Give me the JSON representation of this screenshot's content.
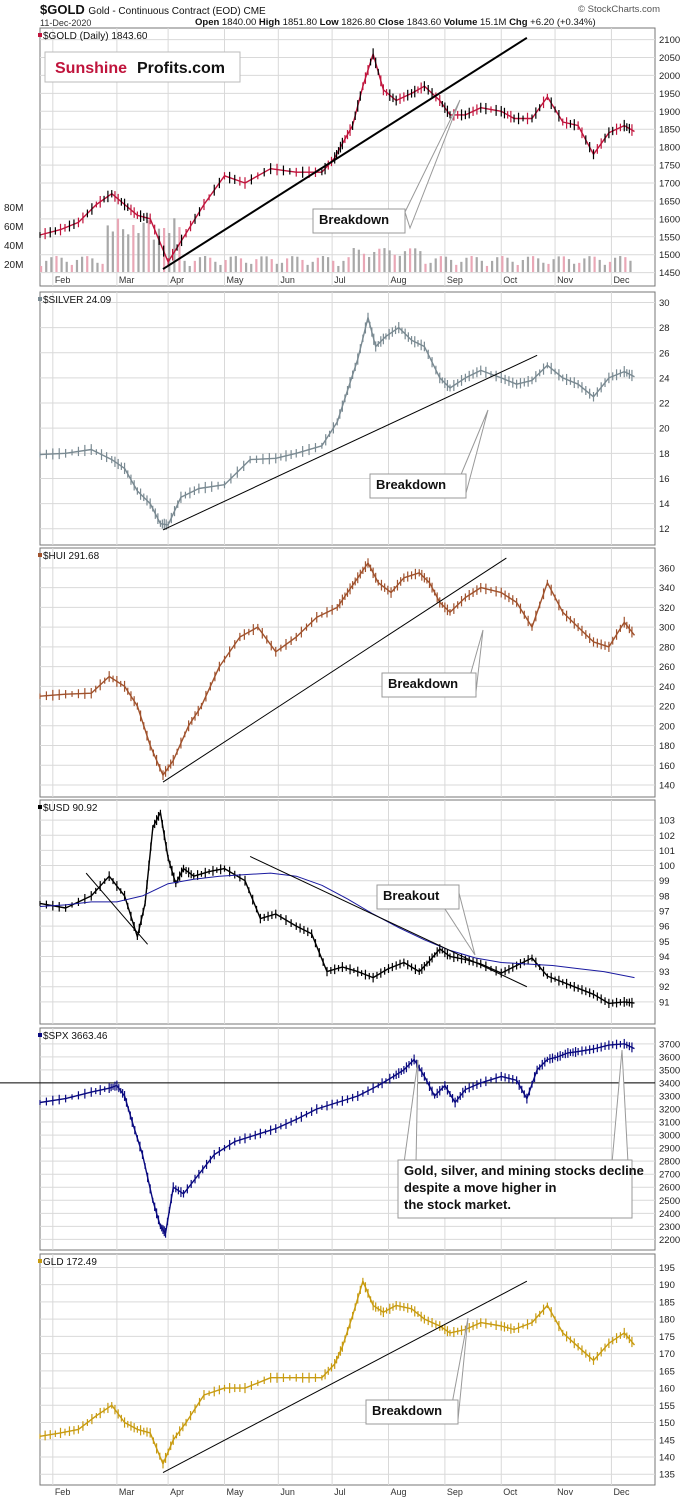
{
  "header": {
    "symbol": "$GOLD",
    "description": "Gold - Continuous Contract (EOD)",
    "exchange": "CME",
    "date": "11-Dec-2020",
    "ohlc": [
      {
        "label": "Open",
        "value": "1840.00"
      },
      {
        "label": "High",
        "value": "1851.80"
      },
      {
        "label": "Low",
        "value": "1826.80"
      },
      {
        "label": "Close",
        "value": "1843.60"
      },
      {
        "label": "Volume",
        "value": "15.1M"
      },
      {
        "label": "Chg",
        "value": "+6.20 (+0.34%)"
      }
    ],
    "credit": "© StockCharts.com",
    "logo_word1": "Sunshine",
    "logo_word2": "Profits.com"
  },
  "colors": {
    "gold_up": "#000000",
    "gold_down": "#c0143c",
    "silver": "#7a8a92",
    "hui": "#a0522d",
    "usd": "#000000",
    "usd_ma": "#1a1aa0",
    "spx": "#0a0a80",
    "gld": "#c89b10",
    "logo_red": "#c0143c",
    "grid": "#d9d9d9"
  },
  "x_axis": {
    "months": [
      "Feb",
      "Mar",
      "Apr",
      "May",
      "Jun",
      "Jul",
      "Aug",
      "Sep",
      "Oct",
      "Nov",
      "Dec"
    ]
  },
  "chart_data": [
    {
      "type": "line",
      "panel": "gold",
      "legend": "$GOLD (Daily) 1843.60",
      "ylim": [
        1435,
        2110
      ],
      "yticks": [
        1450,
        1500,
        1550,
        1600,
        1650,
        1700,
        1750,
        1800,
        1850,
        1900,
        1950,
        2000,
        2050,
        2100
      ],
      "volume_ticks": [
        "20M",
        "40M",
        "60M",
        "80M"
      ],
      "series": [
        {
          "x": [
            0,
            8,
            15,
            22,
            28,
            33,
            38,
            43,
            50,
            57,
            64,
            72,
            80,
            90,
            100,
            110,
            115,
            118,
            122,
            126,
            130,
            134,
            139,
            145,
            150,
            156,
            160,
            166,
            172,
            180,
            185,
            192,
            198,
            204,
            210,
            216,
            222,
            228,
            232
          ],
          "y": [
            1555,
            1570,
            1590,
            1640,
            1670,
            1640,
            1610,
            1600,
            1480,
            1560,
            1640,
            1720,
            1700,
            1740,
            1730,
            1730,
            1770,
            1810,
            1860,
            1970,
            2060,
            1960,
            1930,
            1950,
            1970,
            1930,
            1890,
            1890,
            1910,
            1900,
            1880,
            1880,
            1940,
            1870,
            1860,
            1780,
            1840,
            1860,
            1843.6
          ]
        }
      ],
      "trendline": {
        "x": [
          48,
          190
        ],
        "y": [
          1460,
          2105
        ]
      },
      "annotation": "Breakdown"
    },
    {
      "type": "line",
      "panel": "silver",
      "legend": "$SILVER 24.09",
      "ylim": [
        11.5,
        30.2
      ],
      "yticks": [
        12,
        14,
        16,
        18,
        20,
        22,
        24,
        26,
        28,
        30
      ],
      "series": [
        {
          "x": [
            0,
            10,
            20,
            28,
            33,
            38,
            43,
            47,
            50,
            55,
            62,
            72,
            82,
            92,
            100,
            110,
            116,
            120,
            124,
            128,
            131,
            135,
            140,
            145,
            150,
            156,
            160,
            166,
            172,
            180,
            186,
            192,
            198,
            204,
            210,
            216,
            222,
            228,
            232
          ],
          "y": [
            17.9,
            18.0,
            18.3,
            17.5,
            16.8,
            15.0,
            14.0,
            12.4,
            12.3,
            14.5,
            15.2,
            15.5,
            17.5,
            17.6,
            18.0,
            18.6,
            20.5,
            23.0,
            25.5,
            28.8,
            26.5,
            27.3,
            28.0,
            27.0,
            26.5,
            24.0,
            23.2,
            24.0,
            24.6,
            24.0,
            23.5,
            23.8,
            25.0,
            24.0,
            23.5,
            22.5,
            24.0,
            24.5,
            24.09
          ]
        }
      ],
      "trendline": {
        "x": [
          48,
          194
        ],
        "y": [
          11.9,
          25.8
        ]
      },
      "annotation": "Breakdown"
    },
    {
      "type": "line",
      "panel": "hui",
      "legend": "$HUI 291.68",
      "ylim": [
        138,
        368
      ],
      "yticks": [
        140,
        160,
        180,
        200,
        220,
        240,
        260,
        280,
        300,
        320,
        340,
        360
      ],
      "series": [
        {
          "x": [
            0,
            10,
            20,
            27,
            33,
            38,
            43,
            48,
            52,
            58,
            63,
            70,
            78,
            85,
            92,
            100,
            108,
            116,
            120,
            124,
            128,
            132,
            137,
            142,
            148,
            152,
            156,
            160,
            166,
            172,
            180,
            186,
            192,
            198,
            204,
            210,
            216,
            222,
            228,
            232
          ],
          "y": [
            230,
            232,
            233,
            250,
            240,
            220,
            180,
            150,
            165,
            200,
            220,
            260,
            290,
            300,
            275,
            290,
            310,
            320,
            335,
            350,
            365,
            345,
            335,
            350,
            355,
            345,
            325,
            315,
            330,
            340,
            335,
            325,
            300,
            345,
            315,
            300,
            285,
            280,
            305,
            291.68
          ]
        }
      ],
      "trendline": {
        "x": [
          48,
          182
        ],
        "y": [
          143,
          370
        ]
      },
      "annotation": "Breakdown"
    },
    {
      "type": "line",
      "panel": "usd",
      "legend": "$USD 90.92",
      "ylim": [
        90.2,
        103.8
      ],
      "yticks": [
        91,
        92,
        93,
        94,
        95,
        96,
        97,
        98,
        99,
        100,
        101,
        102,
        103
      ],
      "series": [
        {
          "name": "$USD",
          "x": [
            0,
            10,
            20,
            27,
            33,
            38,
            41,
            44,
            47,
            50,
            53,
            56,
            60,
            66,
            72,
            80,
            86,
            92,
            100,
            106,
            112,
            118,
            124,
            130,
            136,
            142,
            148,
            152,
            156,
            160,
            166,
            172,
            180,
            186,
            192,
            198,
            204,
            210,
            216,
            222,
            228,
            232
          ],
          "y": [
            97.5,
            97.2,
            98.0,
            99.3,
            98.0,
            95.3,
            97.5,
            102.5,
            103.5,
            100.5,
            98.8,
            99.8,
            99.3,
            99.6,
            99.8,
            99.0,
            96.5,
            96.8,
            96.0,
            95.5,
            93.0,
            93.3,
            93.0,
            92.6,
            93.2,
            93.6,
            93.0,
            93.7,
            94.5,
            94.0,
            93.8,
            93.5,
            92.9,
            93.4,
            93.9,
            92.7,
            92.3,
            91.9,
            91.5,
            90.9,
            91.0,
            90.92
          ]
        },
        {
          "name": "MA",
          "x": [
            0,
            10,
            20,
            30,
            40,
            50,
            60,
            70,
            80,
            90,
            100,
            110,
            120,
            130,
            140,
            150,
            160,
            170,
            180,
            190,
            200,
            210,
            220,
            232
          ],
          "y": [
            97.3,
            97.4,
            97.6,
            97.6,
            98.0,
            98.8,
            99.1,
            99.3,
            99.4,
            99.5,
            99.3,
            98.7,
            97.8,
            96.8,
            95.9,
            95.1,
            94.4,
            93.9,
            93.6,
            93.5,
            93.4,
            93.2,
            93.0,
            92.6
          ]
        }
      ],
      "trendlines": [
        {
          "x": [
            18,
            42
          ],
          "y": [
            99.5,
            94.8
          ]
        },
        {
          "x": [
            82,
            190
          ],
          "y": [
            100.6,
            92.0
          ]
        }
      ],
      "annotation": "Breakout"
    },
    {
      "type": "line",
      "panel": "spx",
      "legend": "$SPX 3663.46",
      "ylim": [
        2180,
        3760
      ],
      "yticks": [
        2200,
        2300,
        2400,
        2500,
        2600,
        2700,
        2800,
        2900,
        3000,
        3100,
        3200,
        3300,
        3400,
        3500,
        3600,
        3700
      ],
      "series": [
        {
          "x": [
            0,
            10,
            20,
            27,
            30,
            33,
            36,
            40,
            44,
            47,
            49,
            52,
            56,
            62,
            68,
            76,
            84,
            92,
            100,
            108,
            116,
            124,
            132,
            138,
            142,
            146,
            150,
            154,
            158,
            162,
            166,
            172,
            180,
            186,
            190,
            194,
            198,
            202,
            206,
            210,
            216,
            222,
            228,
            232
          ],
          "y": [
            3250,
            3280,
            3330,
            3360,
            3380,
            3300,
            3100,
            2850,
            2500,
            2300,
            2250,
            2600,
            2550,
            2700,
            2850,
            2950,
            3000,
            3050,
            3120,
            3200,
            3250,
            3300,
            3380,
            3450,
            3500,
            3580,
            3450,
            3300,
            3380,
            3250,
            3350,
            3400,
            3450,
            3420,
            3280,
            3500,
            3580,
            3600,
            3630,
            3640,
            3660,
            3690,
            3700,
            3663.46
          ]
        }
      ],
      "hline": 3400,
      "annotation": "Gold, silver, and mining stocks decline despite a move higher in the stock market."
    },
    {
      "type": "line",
      "panel": "gld",
      "legend": "GLD 172.49",
      "ylim": [
        134.2,
        196
      ],
      "yticks": [
        135,
        140,
        145,
        150,
        155,
        160,
        165,
        170,
        175,
        180,
        185,
        190,
        195
      ],
      "series": [
        {
          "x": [
            0,
            8,
            15,
            22,
            28,
            33,
            38,
            43,
            48,
            52,
            57,
            64,
            72,
            80,
            90,
            100,
            110,
            115,
            118,
            122,
            126,
            130,
            134,
            139,
            145,
            150,
            156,
            160,
            166,
            172,
            180,
            185,
            192,
            198,
            204,
            210,
            216,
            222,
            228,
            232
          ],
          "y": [
            146,
            147,
            148,
            152,
            155,
            150,
            148,
            147,
            138,
            145,
            150,
            158,
            160,
            160,
            163,
            163,
            163,
            167,
            172,
            181,
            191,
            184,
            182,
            184,
            183,
            180,
            178,
            176,
            177,
            179,
            178,
            177,
            179,
            184,
            176,
            172,
            168,
            173,
            176,
            172.49
          ]
        }
      ],
      "trendline": {
        "x": [
          48,
          190
        ],
        "y": [
          135.5,
          191
        ]
      },
      "annotation": "Breakdown"
    }
  ]
}
